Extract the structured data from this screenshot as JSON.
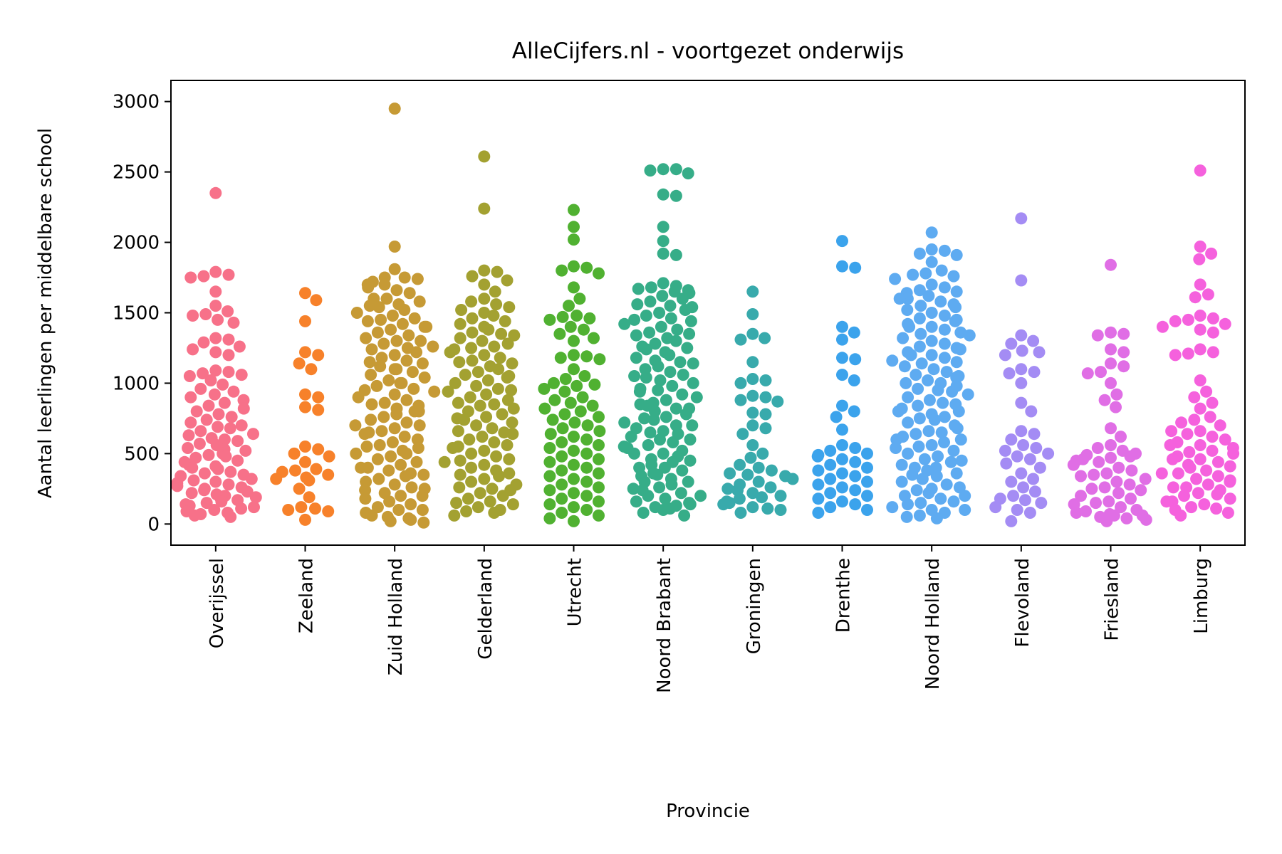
{
  "chart_data": {
    "type": "scatter",
    "subtype": "swarm",
    "title": "AlleCijfers.nl - voortgezet onderwijs",
    "xlabel": "Provincie",
    "ylabel": "Aantal leerlingen per middelbare school",
    "ylim": [
      -150,
      3150
    ],
    "yticks": [
      0,
      500,
      1000,
      1500,
      2000,
      2500,
      3000
    ],
    "grid": false,
    "legend": "none",
    "categories": [
      "Overijssel",
      "Zeeland",
      "Zuid Holland",
      "Gelderland",
      "Utrecht",
      "Noord Brabant",
      "Groningen",
      "Drenthe",
      "Noord Holland",
      "Flevoland",
      "Friesland",
      "Limburg"
    ],
    "series": [
      {
        "color": "#f77189",
        "values": [
          2350,
          1790,
          1770,
          1760,
          1750,
          1650,
          1550,
          1510,
          1490,
          1480,
          1450,
          1430,
          1320,
          1310,
          1290,
          1260,
          1240,
          1220,
          1200,
          1090,
          1080,
          1070,
          1060,
          1050,
          1020,
          990,
          960,
          940,
          920,
          900,
          880,
          860,
          840,
          820,
          800,
          780,
          760,
          740,
          720,
          700,
          690,
          680,
          660,
          640,
          630,
          610,
          600,
          590,
          570,
          560,
          540,
          530,
          520,
          500,
          490,
          480,
          470,
          450,
          440,
          420,
          410,
          400,
          390,
          370,
          360,
          350,
          340,
          320,
          310,
          300,
          290,
          280,
          270,
          260,
          250,
          240,
          230,
          220,
          210,
          200,
          190,
          180,
          170,
          160,
          150,
          140,
          130,
          120,
          110,
          100,
          90,
          80,
          70,
          60,
          50
        ]
      },
      {
        "color": "#f7812a",
        "values": [
          1640,
          1590,
          1440,
          1220,
          1200,
          1140,
          1100,
          920,
          900,
          830,
          810,
          550,
          530,
          500,
          480,
          440,
          390,
          380,
          370,
          350,
          330,
          320,
          310,
          250,
          190,
          120,
          110,
          100,
          90,
          30
        ]
      },
      {
        "color": "#c69a35",
        "values": [
          2950,
          1970,
          1810,
          1750,
          1740,
          1720,
          1700,
          1680,
          1660,
          1640,
          1600,
          1580,
          1560,
          1540,
          1520,
          1500,
          1480,
          1460,
          1440,
          1420,
          1400,
          1380,
          1360,
          1340,
          1320,
          1300,
          1280,
          1260,
          1240,
          1220,
          1200,
          1180,
          1160,
          1140,
          1120,
          1100,
          1080,
          1060,
          1040,
          1020,
          1000,
          980,
          960,
          940,
          920,
          900,
          880,
          860,
          840,
          820,
          800,
          780,
          760,
          740,
          720,
          700,
          680,
          660,
          640,
          620,
          600,
          580,
          560,
          540,
          520,
          500,
          480,
          460,
          440,
          420,
          400,
          380,
          360,
          340,
          320,
          300,
          280,
          260,
          240,
          220,
          200,
          180,
          160,
          140,
          120,
          100,
          80,
          60,
          40,
          30,
          20,
          10,
          1750,
          1600,
          1450,
          1300,
          1150,
          1000,
          850,
          700,
          550,
          400,
          250,
          100,
          1700,
          1550,
          1400,
          1250,
          1100,
          950,
          800,
          650,
          500,
          350,
          200,
          50
        ]
      },
      {
        "color": "#a3a131",
        "values": [
          2610,
          2240,
          1800,
          1790,
          1760,
          1730,
          1700,
          1650,
          1600,
          1580,
          1560,
          1540,
          1520,
          1500,
          1480,
          1460,
          1440,
          1420,
          1400,
          1380,
          1360,
          1340,
          1320,
          1300,
          1280,
          1260,
          1240,
          1220,
          1200,
          1180,
          1160,
          1140,
          1120,
          1100,
          1080,
          1060,
          1040,
          1020,
          1000,
          980,
          960,
          940,
          920,
          900,
          880,
          860,
          840,
          820,
          800,
          780,
          760,
          740,
          720,
          700,
          680,
          660,
          640,
          620,
          600,
          580,
          560,
          540,
          520,
          500,
          480,
          460,
          440,
          420,
          400,
          380,
          360,
          340,
          320,
          300,
          280,
          260,
          240,
          220,
          200,
          180,
          160,
          140,
          120,
          100,
          80,
          60,
          1350,
          1150,
          950,
          750,
          550,
          350,
          150,
          1250,
          1050,
          850,
          650,
          450,
          250,
          90
        ]
      },
      {
        "color": "#50b131",
        "values": [
          2230,
          2110,
          2020,
          1830,
          1820,
          1800,
          1780,
          1680,
          1600,
          1550,
          1480,
          1470,
          1460,
          1450,
          1400,
          1380,
          1350,
          1320,
          1300,
          1200,
          1190,
          1180,
          1170,
          1100,
          1050,
          1030,
          1000,
          990,
          980,
          960,
          940,
          900,
          880,
          860,
          840,
          820,
          800,
          780,
          760,
          740,
          720,
          700,
          680,
          660,
          640,
          620,
          600,
          580,
          560,
          540,
          520,
          500,
          480,
          460,
          440,
          420,
          400,
          380,
          360,
          340,
          320,
          300,
          280,
          260,
          240,
          220,
          200,
          180,
          160,
          140,
          120,
          100,
          80,
          60,
          40,
          20
        ]
      },
      {
        "color": "#36ad88",
        "values": [
          2520,
          2520,
          2510,
          2490,
          2340,
          2330,
          2110,
          2010,
          1920,
          1910,
          1710,
          1690,
          1680,
          1670,
          1660,
          1650,
          1640,
          1620,
          1600,
          1580,
          1560,
          1540,
          1520,
          1500,
          1480,
          1460,
          1440,
          1420,
          1400,
          1380,
          1360,
          1340,
          1320,
          1300,
          1280,
          1260,
          1240,
          1220,
          1200,
          1180,
          1160,
          1140,
          1120,
          1100,
          1080,
          1060,
          1040,
          1020,
          1000,
          980,
          960,
          940,
          920,
          900,
          880,
          860,
          840,
          820,
          800,
          780,
          760,
          740,
          720,
          700,
          680,
          660,
          640,
          620,
          600,
          580,
          560,
          540,
          520,
          500,
          480,
          460,
          440,
          420,
          400,
          380,
          360,
          340,
          320,
          300,
          280,
          260,
          240,
          220,
          200,
          180,
          160,
          140,
          120,
          100,
          80,
          60,
          1550,
          1350,
          1150,
          950,
          750,
          550,
          350,
          150,
          1450,
          1250,
          1050,
          850,
          650,
          450,
          250,
          110,
          820,
          700,
          600,
          500,
          400,
          300,
          200,
          130
        ]
      },
      {
        "color": "#38aaac",
        "values": [
          1650,
          1490,
          1350,
          1320,
          1310,
          1150,
          1030,
          1020,
          1000,
          910,
          900,
          880,
          870,
          790,
          780,
          700,
          680,
          640,
          560,
          500,
          470,
          420,
          400,
          380,
          360,
          350,
          340,
          320,
          300,
          280,
          260,
          250,
          240,
          220,
          200,
          190,
          180,
          160,
          150,
          140,
          120,
          110,
          100,
          80
        ]
      },
      {
        "color": "#3ba3ec",
        "values": [
          2010,
          1830,
          1820,
          1400,
          1360,
          1310,
          1180,
          1170,
          1060,
          1020,
          840,
          800,
          760,
          670,
          560,
          540,
          520,
          500,
          490,
          480,
          460,
          440,
          420,
          400,
          380,
          360,
          340,
          320,
          300,
          280,
          260,
          240,
          220,
          200,
          180,
          160,
          140,
          120,
          100,
          80
        ]
      },
      {
        "color": "#5eabf1",
        "values": [
          2070,
          1950,
          1940,
          1920,
          1910,
          1860,
          1800,
          1780,
          1770,
          1760,
          1740,
          1700,
          1680,
          1660,
          1640,
          1620,
          1600,
          1580,
          1560,
          1540,
          1520,
          1500,
          1480,
          1460,
          1440,
          1420,
          1400,
          1380,
          1360,
          1340,
          1320,
          1300,
          1280,
          1260,
          1240,
          1220,
          1200,
          1180,
          1160,
          1140,
          1120,
          1100,
          1080,
          1060,
          1040,
          1020,
          1000,
          980,
          960,
          940,
          920,
          900,
          880,
          860,
          840,
          820,
          800,
          780,
          760,
          740,
          720,
          700,
          680,
          660,
          640,
          620,
          600,
          580,
          560,
          540,
          520,
          500,
          480,
          460,
          440,
          420,
          400,
          380,
          360,
          340,
          320,
          300,
          280,
          260,
          240,
          220,
          200,
          180,
          160,
          140,
          120,
          100,
          80,
          60,
          40,
          1650,
          1450,
          1250,
          1050,
          850,
          650,
          450,
          250,
          100,
          1550,
          1350,
          1150,
          950,
          750,
          550,
          350,
          150,
          1600,
          1400,
          1200,
          1000,
          800,
          600,
          400,
          200,
          50
        ]
      },
      {
        "color": "#a48cf4",
        "values": [
          2170,
          1730,
          1340,
          1300,
          1280,
          1230,
          1220,
          1200,
          1100,
          1080,
          1070,
          1000,
          860,
          800,
          660,
          640,
          600,
          560,
          540,
          520,
          500,
          480,
          460,
          430,
          400,
          360,
          320,
          300,
          260,
          230,
          200,
          180,
          170,
          150,
          120,
          100,
          80,
          20
        ]
      },
      {
        "color": "#e06ee5",
        "values": [
          1840,
          1360,
          1350,
          1340,
          1240,
          1220,
          1140,
          1120,
          1080,
          1070,
          1000,
          920,
          880,
          830,
          680,
          620,
          560,
          540,
          520,
          500,
          490,
          480,
          470,
          460,
          440,
          420,
          400,
          380,
          360,
          340,
          320,
          300,
          280,
          260,
          240,
          220,
          200,
          180,
          160,
          140,
          120,
          100,
          90,
          80,
          70,
          60,
          50,
          40,
          30,
          20,
          450,
          350,
          250,
          150,
          60
        ]
      },
      {
        "color": "#f561dd",
        "values": [
          2510,
          1970,
          1920,
          1880,
          1700,
          1630,
          1610,
          1480,
          1460,
          1450,
          1440,
          1420,
          1400,
          1380,
          1360,
          1240,
          1220,
          1210,
          1200,
          1020,
          940,
          900,
          860,
          820,
          760,
          740,
          720,
          700,
          660,
          640,
          620,
          600,
          580,
          560,
          540,
          520,
          500,
          480,
          460,
          440,
          420,
          400,
          380,
          360,
          340,
          320,
          300,
          280,
          260,
          240,
          220,
          200,
          180,
          160,
          140,
          120,
          100,
          80,
          60,
          560,
          460,
          360,
          260,
          160,
          660,
          510,
          410,
          310,
          210,
          110
        ]
      }
    ]
  }
}
